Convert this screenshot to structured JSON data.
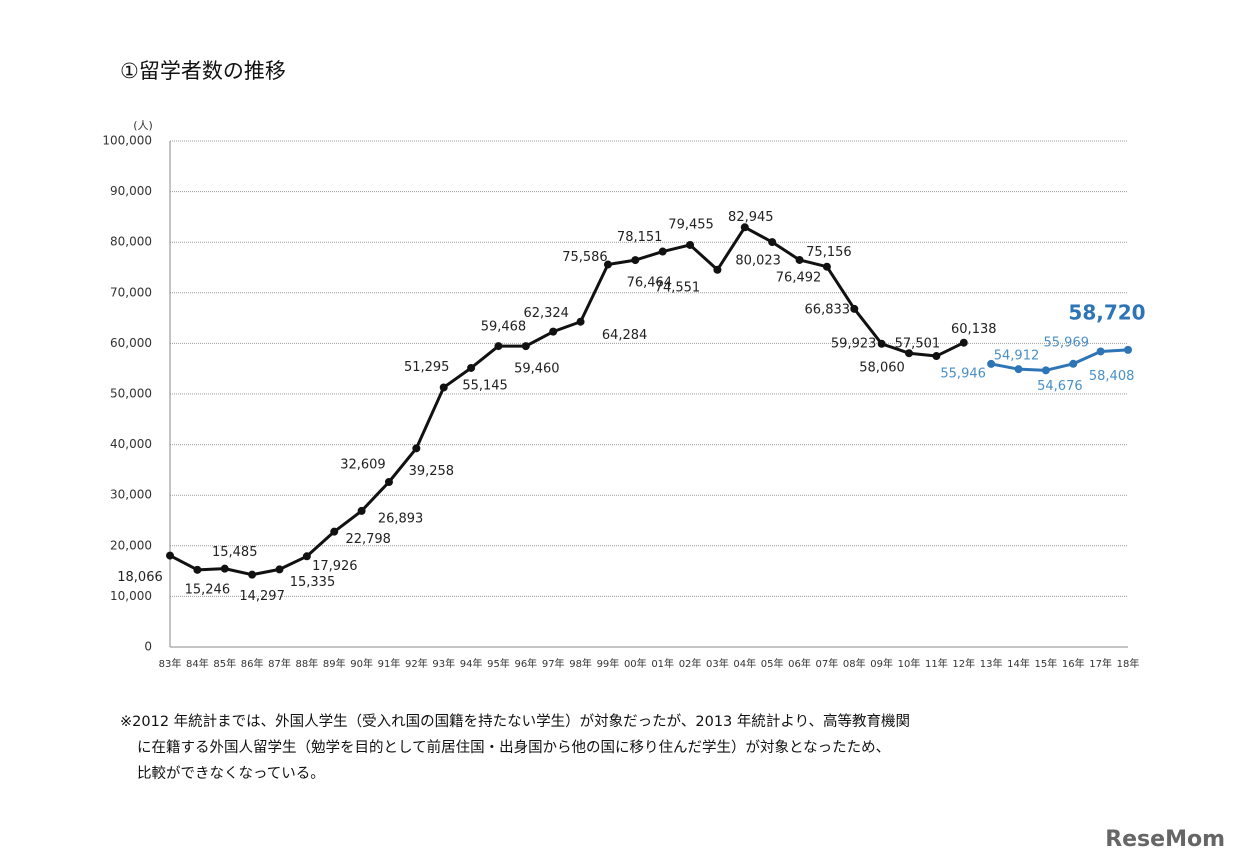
{
  "chart_data": {
    "type": "line",
    "title": "①留学者数の推移",
    "y_unit": "(人)",
    "categories": [
      "83年",
      "84年",
      "85年",
      "86年",
      "87年",
      "88年",
      "89年",
      "90年",
      "91年",
      "92年",
      "93年",
      "94年",
      "95年",
      "96年",
      "97年",
      "98年",
      "99年",
      "00年",
      "01年",
      "02年",
      "03年",
      "04年",
      "05年",
      "06年",
      "07年",
      "08年",
      "09年",
      "10年",
      "11年",
      "12年",
      "13年",
      "14年",
      "15年",
      "16年",
      "17年",
      "18年"
    ],
    "series": [
      {
        "color": "#111111",
        "values": [
          18066,
          15246,
          15485,
          14297,
          15335,
          17926,
          22798,
          26893,
          32609,
          39258,
          51295,
          55145,
          59468,
          59460,
          62324,
          64284,
          75586,
          76464,
          78151,
          79455,
          74551,
          82945,
          80023,
          76492,
          75156,
          66833,
          59923,
          58060,
          57501,
          60138,
          null,
          null,
          null,
          null,
          null,
          null
        ],
        "value_labels": [
          "18,066",
          "15,246",
          "15,485",
          "14,297",
          "15,335",
          "17,926",
          "22,798",
          "26,893",
          "32,609",
          "39,258",
          "51,295",
          "55,145",
          "59,468",
          "59,460",
          "62,324",
          "64,284",
          "75,586",
          "76,464",
          "78,151",
          "79,455",
          "74,551",
          "82,945",
          "80,023",
          "76,492",
          "75,156",
          "66,833",
          "59,923",
          "58,060",
          "57,501",
          "60,138",
          null,
          null,
          null,
          null,
          null,
          null
        ]
      },
      {
        "color": "#2e75b6",
        "values": [
          null,
          null,
          null,
          null,
          null,
          null,
          null,
          null,
          null,
          null,
          null,
          null,
          null,
          null,
          null,
          null,
          null,
          null,
          null,
          null,
          null,
          null,
          null,
          null,
          null,
          null,
          null,
          null,
          null,
          null,
          55946,
          54912,
          54676,
          55969,
          58408,
          58720
        ],
        "value_labels": [
          null,
          null,
          null,
          null,
          null,
          null,
          null,
          null,
          null,
          null,
          null,
          null,
          null,
          null,
          null,
          null,
          null,
          null,
          null,
          null,
          null,
          null,
          null,
          null,
          null,
          null,
          null,
          null,
          null,
          null,
          "55,946",
          "54,912",
          "54,676",
          "55,969",
          "58,408",
          "58,720"
        ]
      }
    ],
    "ylim": [
      0,
      100000
    ],
    "yticks": [
      0,
      {
        "value": 10000,
        "label": "10,000"
      },
      {
        "value": 20000,
        "label": "20,000"
      },
      {
        "value": 30000,
        "label": "30,000"
      },
      {
        "value": 40000,
        "label": "40,000"
      },
      {
        "value": 50000,
        "label": "50,000"
      },
      {
        "value": 60000,
        "label": "60,000"
      },
      {
        "value": 70000,
        "label": "70,000"
      },
      {
        "value": 80000,
        "label": "80,000"
      },
      {
        "value": 90000,
        "label": "90,000"
      },
      {
        "value": 100000,
        "label": "100,000"
      }
    ],
    "grid": true,
    "note": [
      "※2012 年統計までは、外国人学生（受入れ国の国籍を持たない学生）が対象だったが、2013 年統計より、高等教育機関",
      "に在籍する外国人留学生（勉学を目的として前居住国・出身国から他の国に移り住んだ学生）が対象となったため、",
      "比較ができなくなっている。"
    ],
    "watermark": "ReseMom"
  }
}
